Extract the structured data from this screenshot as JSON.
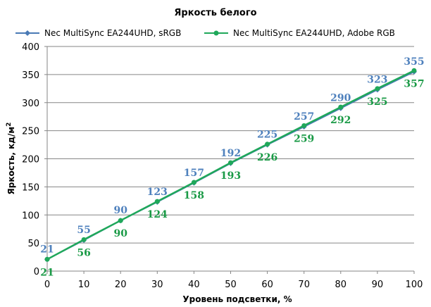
{
  "chart_data": {
    "type": "line",
    "title": "Яркость белого",
    "xlabel": "Уровень подсветки, %",
    "ylabel": "Яркость, кд/м",
    "ylabel_sup": "2",
    "x": [
      0,
      10,
      20,
      30,
      40,
      50,
      60,
      70,
      80,
      90,
      100
    ],
    "xlim": [
      0,
      100
    ],
    "ylim": [
      0,
      400
    ],
    "xticks": [
      "0",
      "10",
      "20",
      "30",
      "40",
      "50",
      "60",
      "70",
      "80",
      "90",
      "100"
    ],
    "yticks": [
      "0",
      "50",
      "100",
      "150",
      "200",
      "250",
      "300",
      "350",
      "400"
    ],
    "grid": "horizontal",
    "legend_position": "top",
    "series": [
      {
        "name": "Nec MultiSync EA244UHD, sRGB",
        "color": "#4a7ab5",
        "label_color": "#4f81bd",
        "marker": "diamond",
        "label_position": "above",
        "values": [
          21,
          55,
          90,
          123,
          157,
          192,
          225,
          257,
          290,
          323,
          355
        ]
      },
      {
        "name": "Nec MultiSync EA244UHD, Adobe RGB",
        "color": "#1fa85a",
        "label_color": "#1a9a46",
        "marker": "circle",
        "label_position": "below",
        "values": [
          21,
          56,
          90,
          124,
          158,
          193,
          226,
          259,
          292,
          325,
          357
        ]
      }
    ]
  }
}
